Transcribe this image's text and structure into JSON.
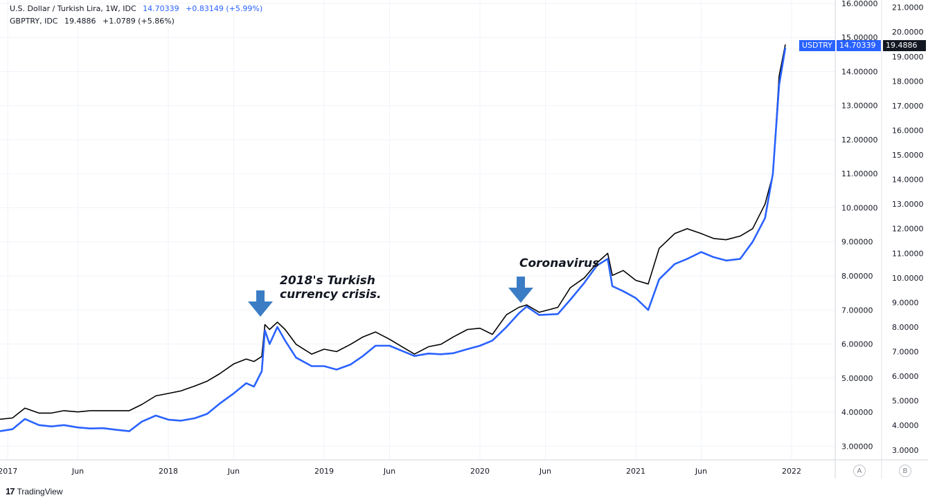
{
  "legend": {
    "usd_title": "U.S. Dollar / Turkish Lira, 1W, IDC",
    "usd_value": "14.70339",
    "usd_change": "+0.83149 (+5.99%)",
    "gbp_title": "GBPTRY, IDC",
    "gbp_value": "19.4886",
    "gbp_change": "+1.0789 (+5.86%)"
  },
  "badges": {
    "usd_symbol": "USDTRY",
    "usd_last": "14.70339",
    "gbp_last": "19.4886"
  },
  "annotations": {
    "crisis_line1": "2018's Turkish",
    "crisis_line2": "currency crisis.",
    "covid": "Coronavirus"
  },
  "scale_buttons": {
    "a": "A",
    "b": "B"
  },
  "footer": {
    "brand": "TradingView"
  },
  "colors": {
    "usdtry": "#2962ff",
    "gbptry": "#000000",
    "arrow": "#3b7dc4",
    "grid": "#f0f3fa"
  },
  "chart_data": {
    "type": "line",
    "x_ticks": [
      "2017",
      "Jun",
      "2018",
      "Jun",
      "2019",
      "Jun",
      "2020",
      "Jun",
      "2021",
      "Jun",
      "2022"
    ],
    "y_left_ticks": [
      "16.00000",
      "15.00000",
      "14.00000",
      "13.00000",
      "12.00000",
      "11.00000",
      "10.00000",
      "9.00000",
      "8.00000",
      "7.00000",
      "6.00000",
      "5.00000",
      "4.00000",
      "3.00000"
    ],
    "y_right_ticks": [
      "21.0000",
      "20.0000",
      "19.0000",
      "18.0000",
      "17.0000",
      "16.0000",
      "15.0000",
      "14.0000",
      "13.0000",
      "12.0000",
      "11.0000",
      "10.0000",
      "9.0000",
      "8.0000",
      "7.0000",
      "6.0000",
      "5.0000",
      "4.0000",
      "3.0000"
    ],
    "series": [
      {
        "name": "USDTRY",
        "points": [
          [
            2016.92,
            3.44
          ],
          [
            2017.0,
            3.5
          ],
          [
            2017.08,
            3.8
          ],
          [
            2017.17,
            3.62
          ],
          [
            2017.25,
            3.58
          ],
          [
            2017.33,
            3.62
          ],
          [
            2017.42,
            3.55
          ],
          [
            2017.5,
            3.52
          ],
          [
            2017.58,
            3.53
          ],
          [
            2017.67,
            3.48
          ],
          [
            2017.75,
            3.44
          ],
          [
            2017.83,
            3.72
          ],
          [
            2017.92,
            3.9
          ],
          [
            2018.0,
            3.78
          ],
          [
            2018.08,
            3.75
          ],
          [
            2018.17,
            3.82
          ],
          [
            2018.25,
            3.95
          ],
          [
            2018.33,
            4.25
          ],
          [
            2018.42,
            4.55
          ],
          [
            2018.5,
            4.85
          ],
          [
            2018.55,
            4.75
          ],
          [
            2018.6,
            5.2
          ],
          [
            2018.62,
            6.4
          ],
          [
            2018.65,
            6.0
          ],
          [
            2018.7,
            6.5
          ],
          [
            2018.75,
            6.1
          ],
          [
            2018.82,
            5.6
          ],
          [
            2018.92,
            5.35
          ],
          [
            2019.0,
            5.35
          ],
          [
            2019.08,
            5.25
          ],
          [
            2019.17,
            5.4
          ],
          [
            2019.25,
            5.65
          ],
          [
            2019.33,
            5.95
          ],
          [
            2019.42,
            5.95
          ],
          [
            2019.5,
            5.8
          ],
          [
            2019.58,
            5.65
          ],
          [
            2019.67,
            5.72
          ],
          [
            2019.75,
            5.7
          ],
          [
            2019.83,
            5.73
          ],
          [
            2019.92,
            5.85
          ],
          [
            2020.0,
            5.95
          ],
          [
            2020.08,
            6.1
          ],
          [
            2020.17,
            6.5
          ],
          [
            2020.25,
            6.9
          ],
          [
            2020.3,
            7.1
          ],
          [
            2020.38,
            6.85
          ],
          [
            2020.5,
            6.88
          ],
          [
            2020.58,
            7.3
          ],
          [
            2020.67,
            7.8
          ],
          [
            2020.75,
            8.3
          ],
          [
            2020.82,
            8.5
          ],
          [
            2020.85,
            7.7
          ],
          [
            2020.92,
            7.55
          ],
          [
            2021.0,
            7.35
          ],
          [
            2021.08,
            7.0
          ],
          [
            2021.15,
            7.9
          ],
          [
            2021.25,
            8.35
          ],
          [
            2021.33,
            8.5
          ],
          [
            2021.42,
            8.7
          ],
          [
            2021.5,
            8.55
          ],
          [
            2021.58,
            8.45
          ],
          [
            2021.67,
            8.5
          ],
          [
            2021.75,
            9.0
          ],
          [
            2021.83,
            9.7
          ],
          [
            2021.88,
            11.0
          ],
          [
            2021.92,
            13.6
          ],
          [
            2021.96,
            14.70339
          ]
        ]
      },
      {
        "name": "GBPTRY",
        "points": [
          [
            2016.92,
            4.25
          ],
          [
            2017.0,
            4.3
          ],
          [
            2017.08,
            4.7
          ],
          [
            2017.17,
            4.5
          ],
          [
            2017.25,
            4.5
          ],
          [
            2017.33,
            4.6
          ],
          [
            2017.42,
            4.55
          ],
          [
            2017.5,
            4.6
          ],
          [
            2017.58,
            4.6
          ],
          [
            2017.67,
            4.6
          ],
          [
            2017.75,
            4.6
          ],
          [
            2017.83,
            4.85
          ],
          [
            2017.92,
            5.2
          ],
          [
            2018.0,
            5.3
          ],
          [
            2018.08,
            5.4
          ],
          [
            2018.17,
            5.6
          ],
          [
            2018.25,
            5.8
          ],
          [
            2018.33,
            6.1
          ],
          [
            2018.42,
            6.5
          ],
          [
            2018.5,
            6.7
          ],
          [
            2018.55,
            6.6
          ],
          [
            2018.6,
            6.8
          ],
          [
            2018.62,
            8.1
          ],
          [
            2018.65,
            7.9
          ],
          [
            2018.7,
            8.2
          ],
          [
            2018.75,
            7.9
          ],
          [
            2018.82,
            7.3
          ],
          [
            2018.92,
            6.9
          ],
          [
            2019.0,
            7.1
          ],
          [
            2019.08,
            7.0
          ],
          [
            2019.17,
            7.3
          ],
          [
            2019.25,
            7.6
          ],
          [
            2019.33,
            7.8
          ],
          [
            2019.42,
            7.5
          ],
          [
            2019.5,
            7.2
          ],
          [
            2019.58,
            6.9
          ],
          [
            2019.67,
            7.2
          ],
          [
            2019.75,
            7.3
          ],
          [
            2019.83,
            7.6
          ],
          [
            2019.92,
            7.9
          ],
          [
            2020.0,
            7.95
          ],
          [
            2020.08,
            7.7
          ],
          [
            2020.17,
            8.5
          ],
          [
            2020.25,
            8.8
          ],
          [
            2020.3,
            8.9
          ],
          [
            2020.38,
            8.6
          ],
          [
            2020.5,
            8.8
          ],
          [
            2020.58,
            9.6
          ],
          [
            2020.67,
            10.0
          ],
          [
            2020.75,
            10.6
          ],
          [
            2020.82,
            11.0
          ],
          [
            2020.85,
            10.1
          ],
          [
            2020.92,
            10.3
          ],
          [
            2021.0,
            9.9
          ],
          [
            2021.08,
            9.75
          ],
          [
            2021.15,
            11.2
          ],
          [
            2021.25,
            11.8
          ],
          [
            2021.33,
            12.0
          ],
          [
            2021.42,
            11.8
          ],
          [
            2021.5,
            11.6
          ],
          [
            2021.58,
            11.55
          ],
          [
            2021.67,
            11.7
          ],
          [
            2021.75,
            12.0
          ],
          [
            2021.83,
            13.0
          ],
          [
            2021.88,
            14.2
          ],
          [
            2021.92,
            18.2
          ],
          [
            2021.96,
            19.4886
          ]
        ]
      }
    ],
    "x_range": [
      2016.92,
      2022.28
    ],
    "y_left_range": [
      2.6,
      16.1
    ],
    "y_right_range": [
      2.6,
      21.3
    ],
    "grid": true
  }
}
